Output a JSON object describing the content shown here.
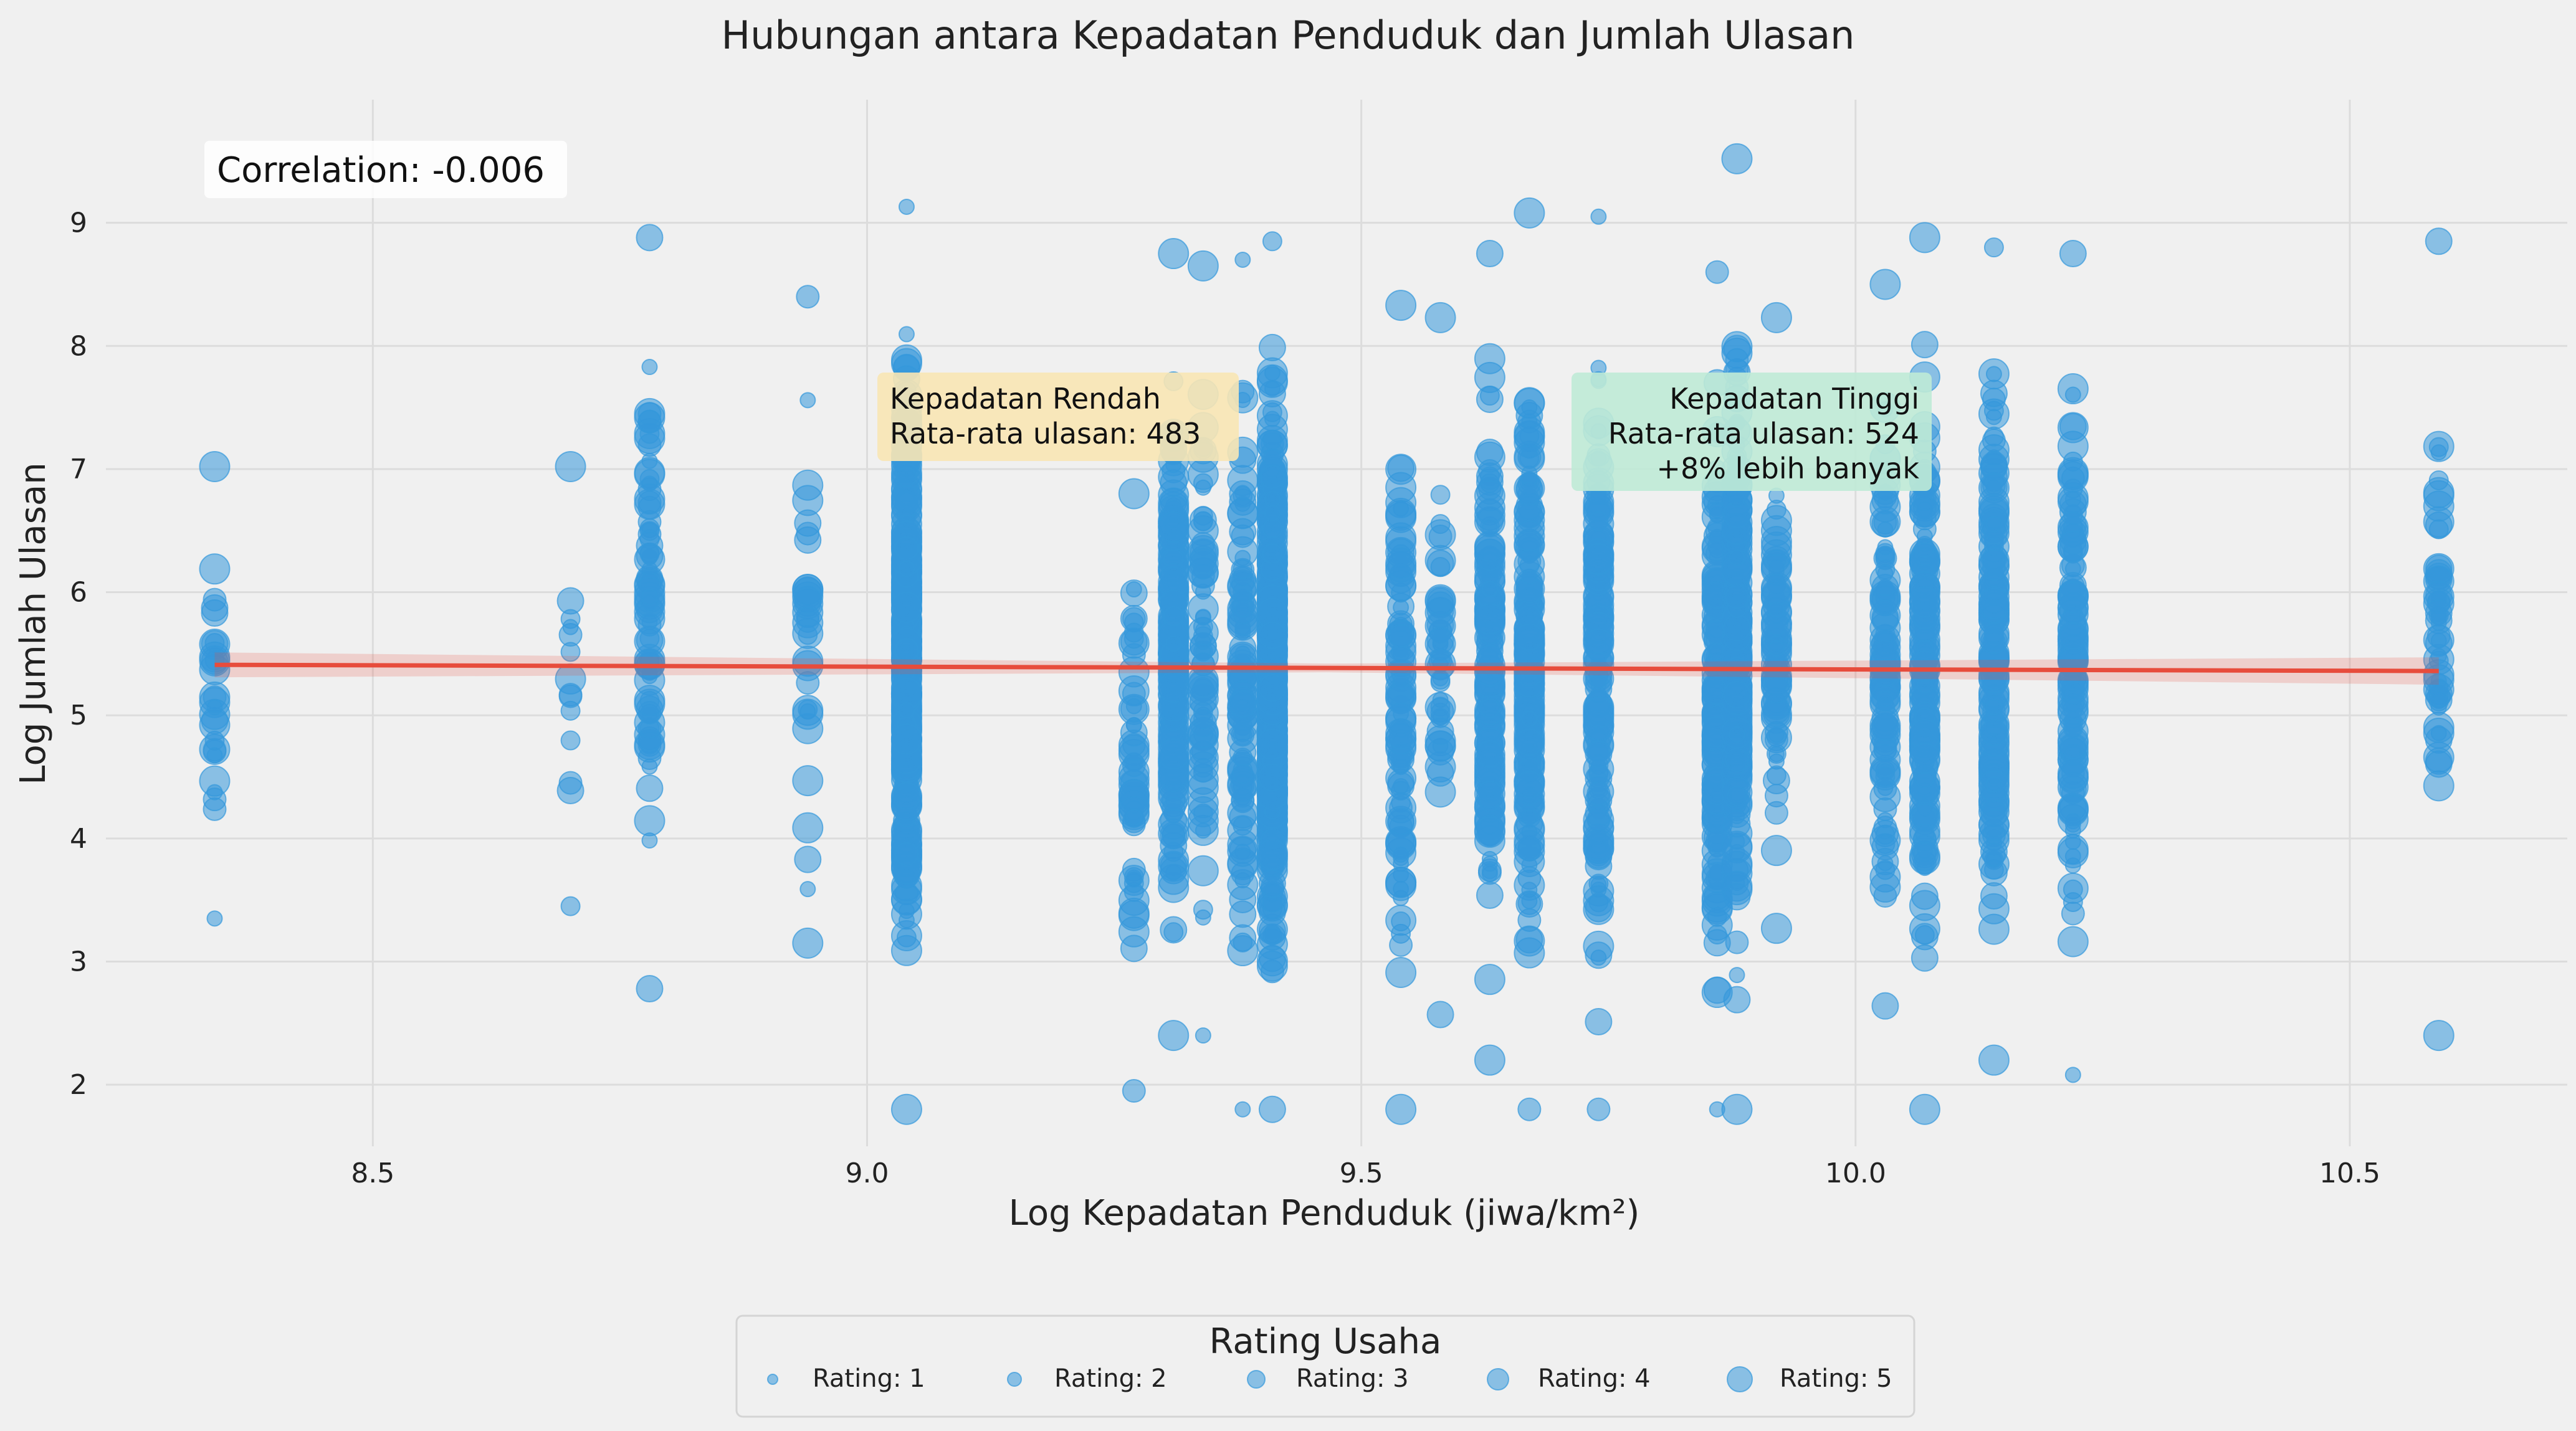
{
  "chart_data": {
    "type": "scatter",
    "title": "Hubungan antara Kepadatan Penduduk dan Jumlah Ulasan",
    "xlabel": "Log Kepadatan Penduduk (jiwa/km²)",
    "ylabel": "Log Jumlah Ulasan",
    "xlim": [
      8.23,
      10.72
    ],
    "ylim": [
      1.5,
      10.0
    ],
    "x_ticks": [
      8.5,
      9.0,
      9.5,
      10.0,
      10.5
    ],
    "x_tick_labels": [
      "8.5",
      "9.0",
      "9.5",
      "10.0",
      "10.5"
    ],
    "y_ticks": [
      2,
      3,
      4,
      5,
      6,
      7,
      8,
      9
    ],
    "y_tick_labels": [
      "2",
      "3",
      "4",
      "5",
      "6",
      "7",
      "8",
      "9"
    ],
    "grid": true,
    "point_color": "#3498db",
    "regression_color": "#e74c3c",
    "regression_line": {
      "x": [
        8.34,
        10.59
      ],
      "y": [
        5.41,
        5.36
      ]
    },
    "clusters": [
      {
        "x": 8.34,
        "count": 30,
        "ymin": 3.35,
        "ymax": 7.02
      },
      {
        "x": 8.7,
        "count": 14,
        "ymin": 3.45,
        "ymax": 7.02
      },
      {
        "x": 8.78,
        "count": 90,
        "ymin": 2.78,
        "ymax": 8.88
      },
      {
        "x": 8.94,
        "count": 34,
        "ymin": 3.15,
        "ymax": 8.4
      },
      {
        "x": 9.04,
        "count": 420,
        "ymin": 1.8,
        "ymax": 9.13
      },
      {
        "x": 9.27,
        "count": 60,
        "ymin": 1.95,
        "ymax": 6.8
      },
      {
        "x": 9.31,
        "count": 260,
        "ymin": 2.4,
        "ymax": 8.75
      },
      {
        "x": 9.34,
        "count": 80,
        "ymin": 2.4,
        "ymax": 8.65
      },
      {
        "x": 9.38,
        "count": 120,
        "ymin": 1.8,
        "ymax": 8.7
      },
      {
        "x": 9.41,
        "count": 520,
        "ymin": 1.8,
        "ymax": 8.85
      },
      {
        "x": 9.54,
        "count": 110,
        "ymin": 1.8,
        "ymax": 8.33
      },
      {
        "x": 9.58,
        "count": 50,
        "ymin": 2.57,
        "ymax": 8.23
      },
      {
        "x": 9.63,
        "count": 200,
        "ymin": 2.2,
        "ymax": 8.75
      },
      {
        "x": 9.67,
        "count": 240,
        "ymin": 1.8,
        "ymax": 9.08
      },
      {
        "x": 9.74,
        "count": 200,
        "ymin": 1.8,
        "ymax": 9.05
      },
      {
        "x": 9.86,
        "count": 200,
        "ymin": 1.8,
        "ymax": 8.6
      },
      {
        "x": 9.88,
        "count": 260,
        "ymin": 1.8,
        "ymax": 9.52
      },
      {
        "x": 9.92,
        "count": 90,
        "ymin": 3.27,
        "ymax": 8.23
      },
      {
        "x": 10.03,
        "count": 120,
        "ymin": 2.64,
        "ymax": 8.5
      },
      {
        "x": 10.07,
        "count": 200,
        "ymin": 1.8,
        "ymax": 8.88
      },
      {
        "x": 10.14,
        "count": 180,
        "ymin": 2.2,
        "ymax": 8.8
      },
      {
        "x": 10.22,
        "count": 140,
        "ymin": 2.08,
        "ymax": 8.75
      },
      {
        "x": 10.59,
        "count": 60,
        "ymin": 2.4,
        "ymax": 8.85
      }
    ],
    "annotations": {
      "correlation": "Correlation: -0.006",
      "low_line1": "Kepadatan Rendah",
      "low_line2": "Rata-rata ulasan: 483",
      "high_line1": "Kepadatan Tinggi",
      "high_line2": "Rata-rata ulasan: 524",
      "high_line3": "+8% lebih banyak",
      "low_box_color": "#f8e5b4",
      "high_box_color": "#bfead6"
    },
    "legend": {
      "title": "Rating Usaha",
      "placement": "bottom-center",
      "items": [
        "Rating: 1",
        "Rating: 2",
        "Rating: 3",
        "Rating: 4",
        "Rating: 5"
      ]
    }
  }
}
